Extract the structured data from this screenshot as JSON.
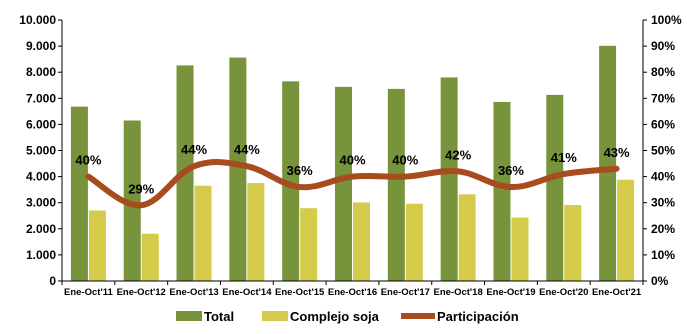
{
  "chart_data": {
    "type": "bar",
    "categories": [
      "Ene-Oct'11",
      "Ene-Oct'12",
      "Ene-Oct'13",
      "Ene-Oct'14",
      "Ene-Oct'15",
      "Ene-Oct'16",
      "Ene-Oct'17",
      "Ene-Oct'18",
      "Ene-Oct'19",
      "Ene-Oct'20",
      "Ene-Oct'21"
    ],
    "y_ticks": [
      "0",
      "1.000",
      "2.000",
      "3.000",
      "4.000",
      "5.000",
      "6.000",
      "7.000",
      "8.000",
      "9.000",
      "10.000"
    ],
    "y2_ticks": [
      "0%",
      "10%",
      "20%",
      "30%",
      "40%",
      "50%",
      "60%",
      "70%",
      "80%",
      "90%",
      "100%"
    ],
    "ylim": [
      0,
      10000
    ],
    "y2lim": [
      0,
      100
    ],
    "series": [
      {
        "name": "Total",
        "kind": "bar",
        "axis": "left",
        "color": "#77933c",
        "values": [
          6680,
          6150,
          8260,
          8560,
          7650,
          7440,
          7360,
          7800,
          6860,
          7130,
          9010
        ]
      },
      {
        "name": "Complejo soja",
        "kind": "bar",
        "axis": "left",
        "color": "#d4cb4b",
        "values": [
          2700,
          1810,
          3650,
          3750,
          2790,
          3010,
          2960,
          3320,
          2430,
          2910,
          3880
        ]
      },
      {
        "name": "Participación",
        "kind": "line",
        "axis": "right",
        "color": "#a84b1e",
        "values": [
          40,
          29,
          44,
          44,
          36,
          40,
          40,
          42,
          36,
          41,
          43
        ],
        "labels": [
          "40%",
          "29%",
          "44%",
          "44%",
          "36%",
          "40%",
          "40%",
          "42%",
          "36%",
          "41%",
          "43%"
        ]
      }
    ],
    "grid": false,
    "legend_position": "bottom"
  }
}
